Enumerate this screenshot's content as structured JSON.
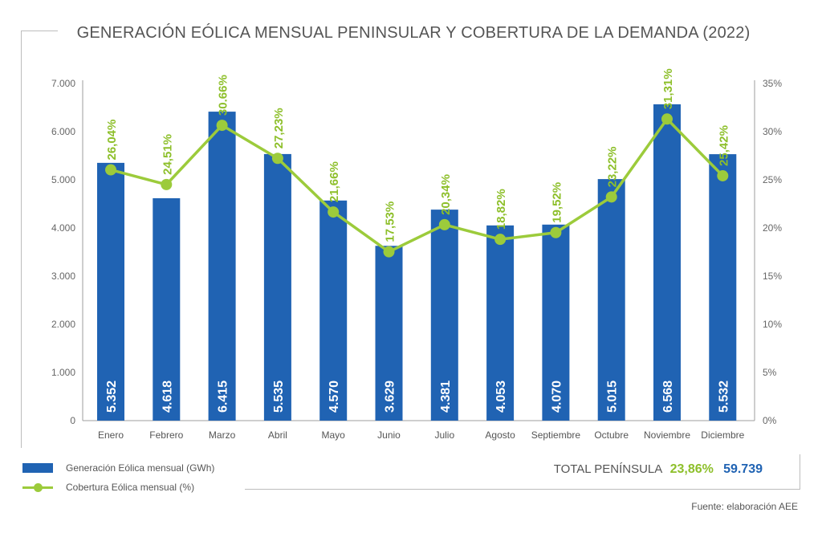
{
  "title": "GENERACIÓN EÓLICA MENSUAL PENINSULAR Y COBERTURA DE LA DEMANDA (2022)",
  "legend": {
    "bars": "Generación Eólica mensual (GWh)",
    "line": "Cobertura Eólica mensual (%)"
  },
  "total": {
    "label": "TOTAL PENÍNSULA",
    "coverage": "23,86%",
    "generation": "59.739"
  },
  "source": "Fuente: elaboración AEE",
  "colors": {
    "bar": "#2063b3",
    "line": "#9ccb3b",
    "line_label": "#8dbf2a"
  },
  "chart_data": {
    "type": "bar",
    "categories": [
      "Enero",
      "Febrero",
      "Marzo",
      "Abril",
      "Mayo",
      "Junio",
      "Julio",
      "Agosto",
      "Septiembre",
      "Octubre",
      "Noviembre",
      "Diciembre"
    ],
    "series": [
      {
        "name": "Generación Eólica mensual (GWh)",
        "type": "bar",
        "axis": "left",
        "values": [
          5352,
          4618,
          6415,
          5535,
          4570,
          3629,
          4381,
          4053,
          4070,
          5015,
          6568,
          5532
        ],
        "labels": [
          "5.352",
          "4.618",
          "6.415",
          "5.535",
          "4.570",
          "3.629",
          "4.381",
          "4.053",
          "4.070",
          "5.015",
          "6.568",
          "5.532"
        ]
      },
      {
        "name": "Cobertura Eólica mensual (%)",
        "type": "line",
        "axis": "right",
        "values": [
          26.04,
          24.51,
          30.66,
          27.23,
          21.66,
          17.53,
          20.34,
          18.82,
          19.52,
          23.22,
          31.31,
          25.42
        ],
        "labels": [
          "26,04%",
          "24,51%",
          "30.66%",
          "27,23%",
          "21,66%",
          "17,53%",
          "20,34%",
          "18,82%",
          "19,52%",
          "23,22%",
          "31,31%",
          "25,42%"
        ]
      }
    ],
    "ylim_left": [
      0,
      7000
    ],
    "yticks_left": [
      "0",
      "1.000",
      "2.000",
      "3.000",
      "4.000",
      "5.000",
      "6.000",
      "7.000"
    ],
    "ylim_right": [
      0,
      35
    ],
    "yticks_right": [
      "0%",
      "5%",
      "10%",
      "15%",
      "20%",
      "25%",
      "30%",
      "35%"
    ],
    "grid": false,
    "legend_position": "bottom-left"
  }
}
